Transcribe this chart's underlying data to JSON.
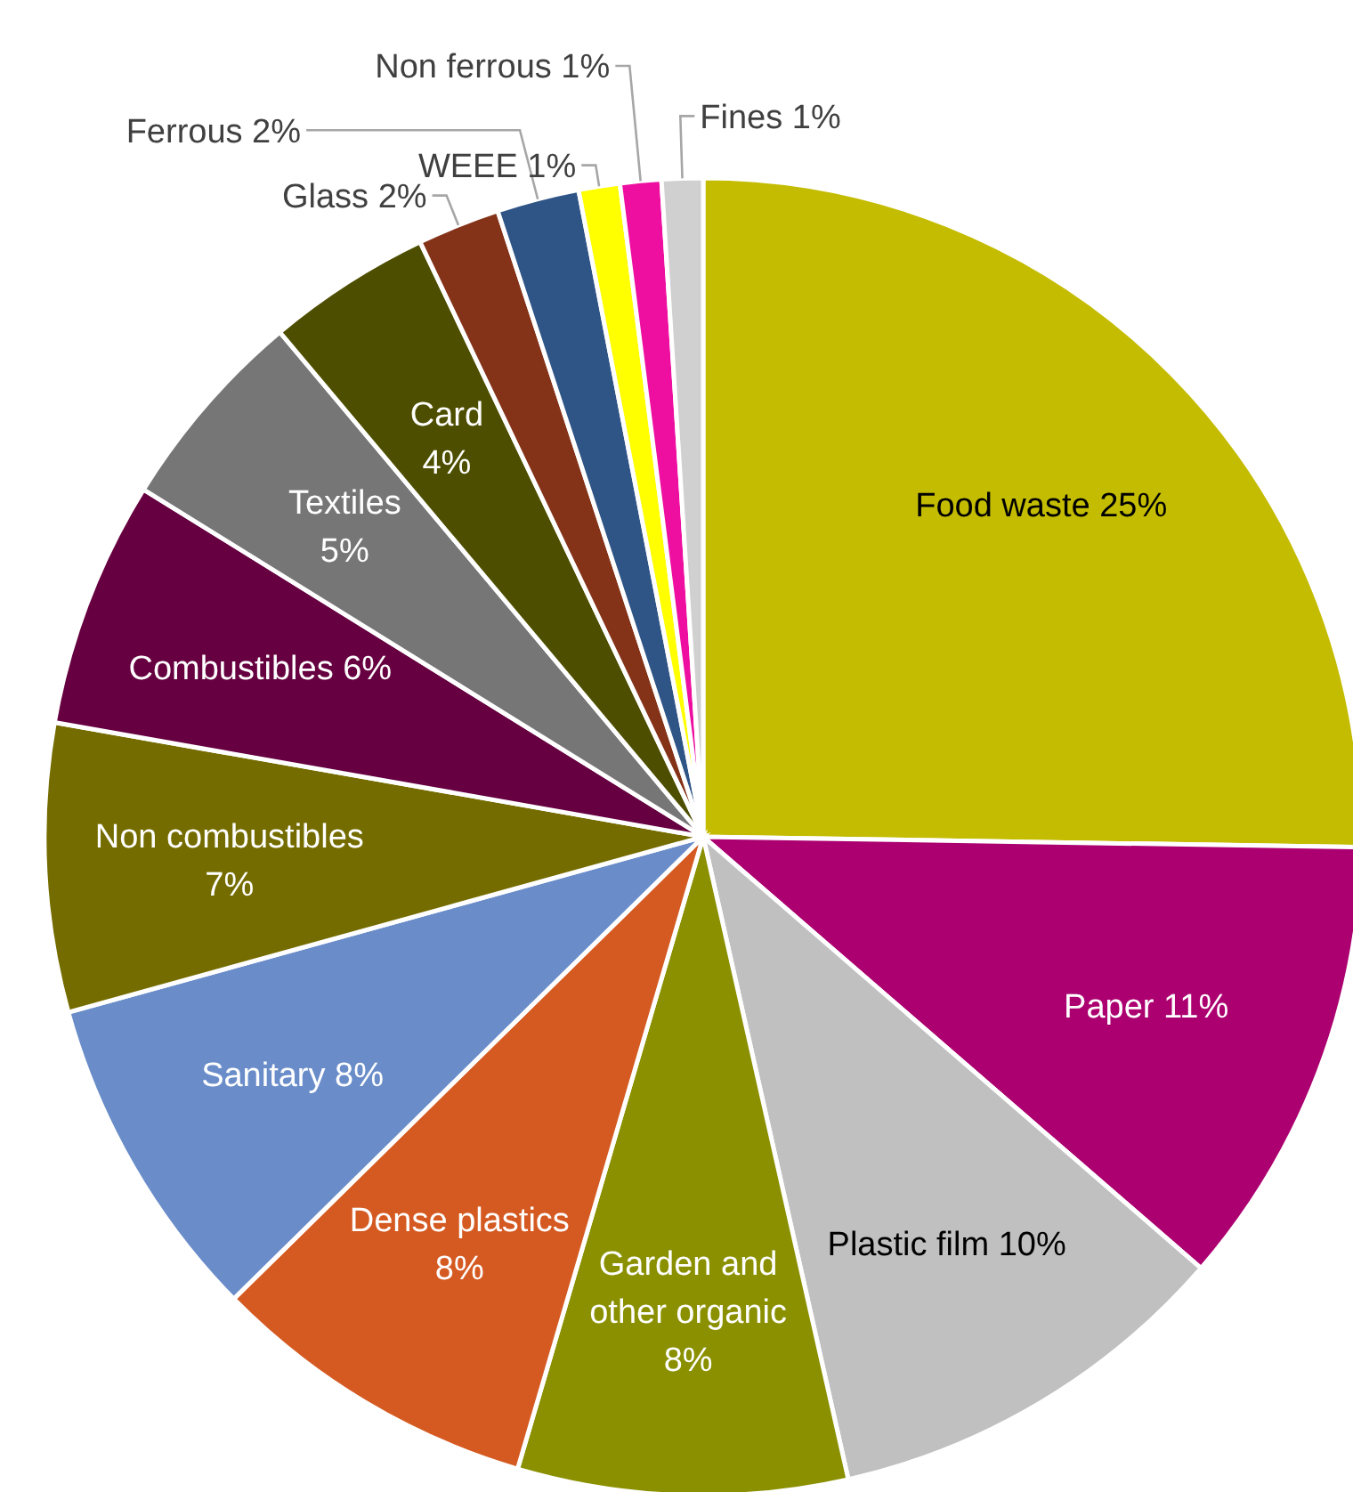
{
  "chart_data": {
    "type": "pie",
    "categories": [
      "Food waste",
      "Paper",
      "Plastic film",
      "Garden and other organic",
      "Dense plastics",
      "Sanitary",
      "Non combustibles",
      "Combustibles",
      "Textiles",
      "Card",
      "Glass",
      "Ferrous",
      "WEEE",
      "Non ferrous",
      "Fines"
    ],
    "values": [
      25,
      11,
      10,
      8,
      8,
      8,
      7,
      6,
      5,
      4,
      2,
      2,
      1,
      1,
      1
    ],
    "value_labels": [
      "25%",
      "11%",
      "10%",
      "8%",
      "8%",
      "8%",
      "7%",
      "6%",
      "5%",
      "4%",
      "2%",
      "2%",
      "1%",
      "1%",
      "1%"
    ],
    "colors": [
      "#c4bc00",
      "#ac0070",
      "#c0c0c0",
      "#8a9000",
      "#d55a22",
      "#6a8dc9",
      "#756c00",
      "#660040",
      "#767676",
      "#4e4e00",
      "#843218",
      "#2f5486",
      "#ffff00",
      "#ee0ea0",
      "#d0d0d0"
    ]
  }
}
